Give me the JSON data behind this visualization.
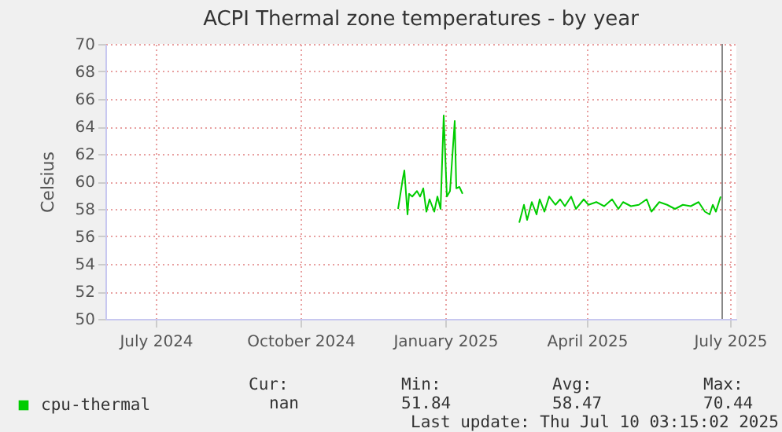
{
  "chart_data": {
    "type": "line",
    "title": "ACPI Thermal zone temperatures - by year",
    "ylabel": "Celsius",
    "x": [
      "2024-12-16",
      "2024-12-19",
      "2024-12-20",
      "2024-12-22",
      "2024-12-23",
      "2024-12-25",
      "2024-12-28",
      "2024-12-30",
      "2025-01-01",
      "2025-01-03",
      "2025-01-05",
      "2025-01-08",
      "2025-01-10",
      "2025-01-12",
      "2025-01-14",
      "2025-01-16",
      "2025-01-18",
      "2025-01-21",
      "2025-01-22",
      "2025-01-24",
      "2025-01-26",
      "2025-02-14",
      "2025-03-03",
      "2025-03-06",
      "2025-03-08",
      "2025-03-11",
      "2025-03-14",
      "2025-03-16",
      "2025-03-19",
      "2025-03-22",
      "2025-03-26",
      "2025-03-29",
      "2025-04-01",
      "2025-04-05",
      "2025-04-08",
      "2025-04-13",
      "2025-04-16",
      "2025-04-21",
      "2025-04-26",
      "2025-05-01",
      "2025-05-05",
      "2025-05-08",
      "2025-05-13",
      "2025-05-18",
      "2025-05-23",
      "2025-05-26",
      "2025-05-31",
      "2025-06-05",
      "2025-06-10",
      "2025-06-15",
      "2025-06-20",
      "2025-06-25",
      "2025-06-29",
      "2025-07-02",
      "2025-07-04",
      "2025-07-06",
      "2025-07-09"
    ],
    "series": [
      {
        "name": "cpu-thermal",
        "color": "#00cc00",
        "values": [
          58.0,
          60.2,
          60.8,
          57.6,
          59.1,
          58.9,
          59.3,
          58.9,
          59.5,
          57.8,
          58.7,
          57.8,
          58.9,
          58.0,
          64.8,
          58.9,
          59.3,
          64.4,
          59.5,
          59.6,
          59.1,
          null,
          57.0,
          58.3,
          57.2,
          58.5,
          57.6,
          58.7,
          57.8,
          58.9,
          58.3,
          58.7,
          58.2,
          58.9,
          58.0,
          58.7,
          58.3,
          58.5,
          58.2,
          58.7,
          58.0,
          58.5,
          58.2,
          58.3,
          58.7,
          57.8,
          58.5,
          58.3,
          58.0,
          58.3,
          58.2,
          58.5,
          57.8,
          57.6,
          58.3,
          57.8,
          58.9
        ]
      }
    ],
    "xlim": [
      "2024-06-13",
      "2025-07-19"
    ],
    "xticks": [
      {
        "value": "2024-07-15",
        "label": "July 2024"
      },
      {
        "value": "2024-10-15",
        "label": "October 2024"
      },
      {
        "value": "2025-01-15",
        "label": "January 2025"
      },
      {
        "value": "2025-04-15",
        "label": "April 2025"
      },
      {
        "value": "2025-07-15",
        "label": "July 2025"
      }
    ],
    "ylim": [
      50,
      70
    ],
    "yticks": [
      50,
      52,
      54,
      56,
      58,
      60,
      62,
      64,
      66,
      68,
      70
    ],
    "ref_lines": [
      {
        "axis": "x",
        "value": "2025-07-10",
        "color": "#888888"
      }
    ],
    "annotations": [
      "Cur:",
      "Min:",
      "Avg:",
      "Max:",
      "nan",
      "51.84",
      "58.47",
      "70.44",
      "Last update: Thu Jul 10 03:15:02 2025"
    ],
    "grid": true,
    "legend": "bottom left",
    "marker": "none",
    "line_style": "solid"
  }
}
